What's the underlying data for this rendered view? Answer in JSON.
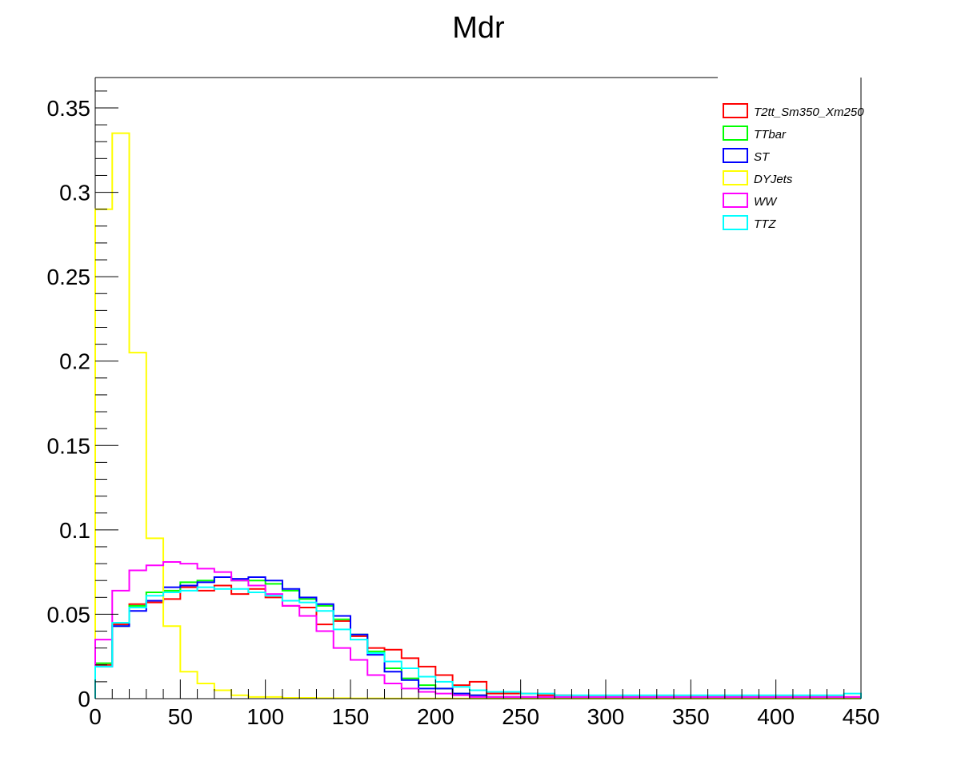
{
  "chart_data": {
    "type": "line",
    "title": "Mdr",
    "xlabel": "",
    "ylabel": "",
    "xlim": [
      0,
      450
    ],
    "ylim": [
      0,
      0.368
    ],
    "bin_width": 10,
    "x_ticks": [
      0,
      50,
      100,
      150,
      200,
      250,
      300,
      350,
      400,
      450
    ],
    "x_tick_labels": [
      "0",
      "50",
      "100",
      "150",
      "200",
      "250",
      "300",
      "350",
      "400",
      "450"
    ],
    "y_ticks": [
      0,
      0.05,
      0.1,
      0.15,
      0.2,
      0.25,
      0.3,
      0.35
    ],
    "y_tick_labels": [
      "0",
      "0.05",
      "0.1",
      "0.15",
      "0.2",
      "0.25",
      "0.3",
      "0.35"
    ],
    "grid": false,
    "legend_position": "top-right",
    "series": [
      {
        "name": "T2tt_Sm350_Xm250",
        "color": "#ff0000",
        "values": [
          0.02,
          0.044,
          0.056,
          0.057,
          0.059,
          0.066,
          0.064,
          0.067,
          0.062,
          0.065,
          0.06,
          0.055,
          0.054,
          0.044,
          0.046,
          0.037,
          0.03,
          0.029,
          0.024,
          0.019,
          0.014,
          0.008,
          0.01,
          0.003,
          0.003,
          0.003,
          0.002,
          0.002,
          0.001,
          0.001,
          0.001,
          0.001,
          0.001,
          0.001,
          0.001,
          0.001,
          0.001,
          0.001,
          0.001,
          0.001,
          0.001,
          0.001,
          0.001,
          0.001,
          0.001
        ]
      },
      {
        "name": "TTbar",
        "color": "#00ff00",
        "values": [
          0.021,
          0.043,
          0.055,
          0.063,
          0.064,
          0.069,
          0.07,
          0.072,
          0.07,
          0.07,
          0.068,
          0.064,
          0.059,
          0.055,
          0.047,
          0.038,
          0.028,
          0.018,
          0.012,
          0.008,
          0.006,
          0.003,
          0.002,
          0.001,
          0.001,
          0.001,
          0.0005,
          0.0005,
          0.0005,
          0.0005,
          0.0005,
          0.0005,
          0.0005,
          0.0005,
          0.0005,
          0.0005,
          0.0005,
          0.0005,
          0.0005,
          0.0005,
          0.0005,
          0.0005,
          0.0005,
          0.0005,
          0.0005
        ]
      },
      {
        "name": "ST",
        "color": "#0000ff",
        "values": [
          0.019,
          0.043,
          0.052,
          0.058,
          0.066,
          0.067,
          0.069,
          0.072,
          0.071,
          0.072,
          0.07,
          0.065,
          0.06,
          0.056,
          0.049,
          0.038,
          0.026,
          0.016,
          0.011,
          0.006,
          0.006,
          0.003,
          0.002,
          0.001,
          0.001,
          0.001,
          0.0005,
          0.0005,
          0.0005,
          0.0005,
          0.0005,
          0.0005,
          0.0005,
          0.0005,
          0.0005,
          0.0005,
          0.0005,
          0.0005,
          0.0005,
          0.0005,
          0.0005,
          0.0005,
          0.0005,
          0.0005,
          0.0005
        ]
      },
      {
        "name": "DYJets",
        "color": "#ffff00",
        "values": [
          0.29,
          0.335,
          0.205,
          0.095,
          0.043,
          0.016,
          0.009,
          0.005,
          0.002,
          0.001,
          0.001,
          0.0005,
          0.0005,
          0.0003,
          0.0003,
          0.0002,
          0.0002,
          0.0001,
          0.0001,
          0.0001,
          0.0001,
          0.0001,
          0.0001,
          0.0001,
          0.0001,
          0.0001,
          0.0001,
          0.0001,
          0.0001,
          0.0001,
          0.0001,
          0.0001,
          0.0001,
          0.0001,
          0.0001,
          0.0001,
          0.0001,
          0.0001,
          0.0001,
          0.0001,
          0.0001,
          0.0001,
          0.0001,
          0.0001,
          0.0001
        ]
      },
      {
        "name": "WW",
        "color": "#ff00ff",
        "values": [
          0.035,
          0.064,
          0.076,
          0.079,
          0.081,
          0.08,
          0.077,
          0.075,
          0.07,
          0.067,
          0.062,
          0.055,
          0.049,
          0.04,
          0.03,
          0.023,
          0.014,
          0.009,
          0.006,
          0.004,
          0.003,
          0.002,
          0.001,
          0.001,
          0.001,
          0.001,
          0.001,
          0.001,
          0.001,
          0.001,
          0.001,
          0.001,
          0.001,
          0.001,
          0.001,
          0.001,
          0.001,
          0.001,
          0.001,
          0.001,
          0.001,
          0.001,
          0.001,
          0.001,
          0.001
        ]
      },
      {
        "name": "TTZ",
        "color": "#00ffff",
        "values": [
          0.019,
          0.045,
          0.054,
          0.061,
          0.063,
          0.064,
          0.066,
          0.065,
          0.065,
          0.063,
          0.061,
          0.058,
          0.057,
          0.052,
          0.041,
          0.035,
          0.027,
          0.022,
          0.018,
          0.013,
          0.01,
          0.007,
          0.005,
          0.004,
          0.004,
          0.003,
          0.003,
          0.002,
          0.002,
          0.002,
          0.002,
          0.002,
          0.002,
          0.002,
          0.002,
          0.002,
          0.002,
          0.002,
          0.002,
          0.002,
          0.002,
          0.002,
          0.002,
          0.002,
          0.003
        ]
      }
    ]
  }
}
